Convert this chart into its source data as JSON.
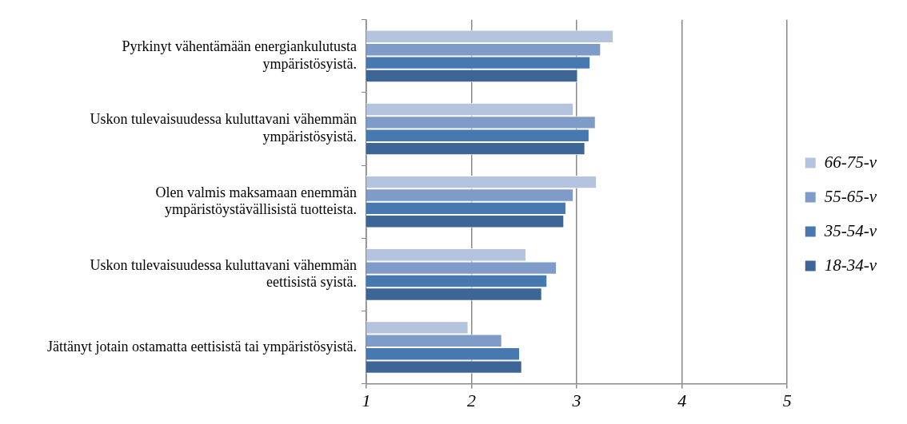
{
  "chart_data": {
    "type": "bar",
    "orientation": "horizontal",
    "categories": [
      "Pyrkinyt vähentämään energiankulutusta ympäristösyistä.",
      "Uskon tulevaisuudessa kuluttavani vähemmän ympäristösyistä.",
      "Olen valmis maksamaan enemmän ympäristöystävällisistä tuotteista.",
      "Uskon tulevaisuudessa kuluttavani vähemmän eettisistä syistä.",
      "Jättänyt jotain ostamatta eettisistä tai ympäristösyistä."
    ],
    "series": [
      {
        "name": "66-75-v",
        "color": "#b4c3de",
        "values": [
          3.35,
          2.97,
          3.19,
          2.52,
          1.97
        ]
      },
      {
        "name": "55-65-v",
        "color": "#7f9cc8",
        "values": [
          3.23,
          3.18,
          2.97,
          2.81,
          2.29
        ]
      },
      {
        "name": "35-54-v",
        "color": "#4878b0",
        "values": [
          3.13,
          3.12,
          2.9,
          2.72,
          2.46
        ]
      },
      {
        "name": "18-34-v",
        "color": "#3d6596",
        "values": [
          3.01,
          3.08,
          2.88,
          2.67,
          2.48
        ]
      }
    ],
    "xlim": [
      1,
      5
    ],
    "xticks": [
      1,
      2,
      3,
      4,
      5
    ],
    "grid": "x",
    "legend": "right"
  }
}
